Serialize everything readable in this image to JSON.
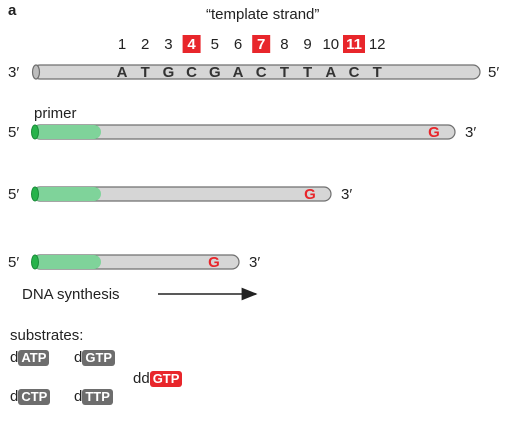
{
  "panel_label": "a",
  "template": {
    "title": "“template strand”",
    "end_left": "3′",
    "end_right": "5′",
    "positions": [
      "1",
      "2",
      "3",
      "4",
      "5",
      "6",
      "7",
      "8",
      "9",
      "10",
      "11",
      "12"
    ],
    "highlighted_positions": [
      "4",
      "7",
      "11"
    ],
    "bases": [
      "A",
      "T",
      "G",
      "C",
      "G",
      "A",
      "C",
      "T",
      "T",
      "A",
      "C",
      "T"
    ]
  },
  "strands": [
    {
      "end5": "5′",
      "end3": "3′",
      "terminal": "G",
      "label": "primer"
    },
    {
      "end5": "5′",
      "end3": "3′",
      "terminal": "G"
    },
    {
      "end5": "5′",
      "end3": "3′",
      "terminal": "G"
    }
  ],
  "synthesis_label": "DNA synthesis",
  "substrates": {
    "title": "substrates:",
    "items": [
      {
        "prefix": "d",
        "badge": "ATP"
      },
      {
        "prefix": "d",
        "badge": "GTP"
      },
      {
        "prefix": "d",
        "badge": "CTP"
      },
      {
        "prefix": "d",
        "badge": "TTP"
      }
    ],
    "terminator": {
      "prefix": "dd",
      "badge": "GTP"
    }
  },
  "colors": {
    "tube_fill": "#d6d6d6",
    "tube_stroke": "#6f6f6f",
    "primer_green": "#7fd39a",
    "primer_cap": "#27b34b",
    "highlight_red": "#e8262b",
    "badge_grey": "#6d6d6d"
  }
}
